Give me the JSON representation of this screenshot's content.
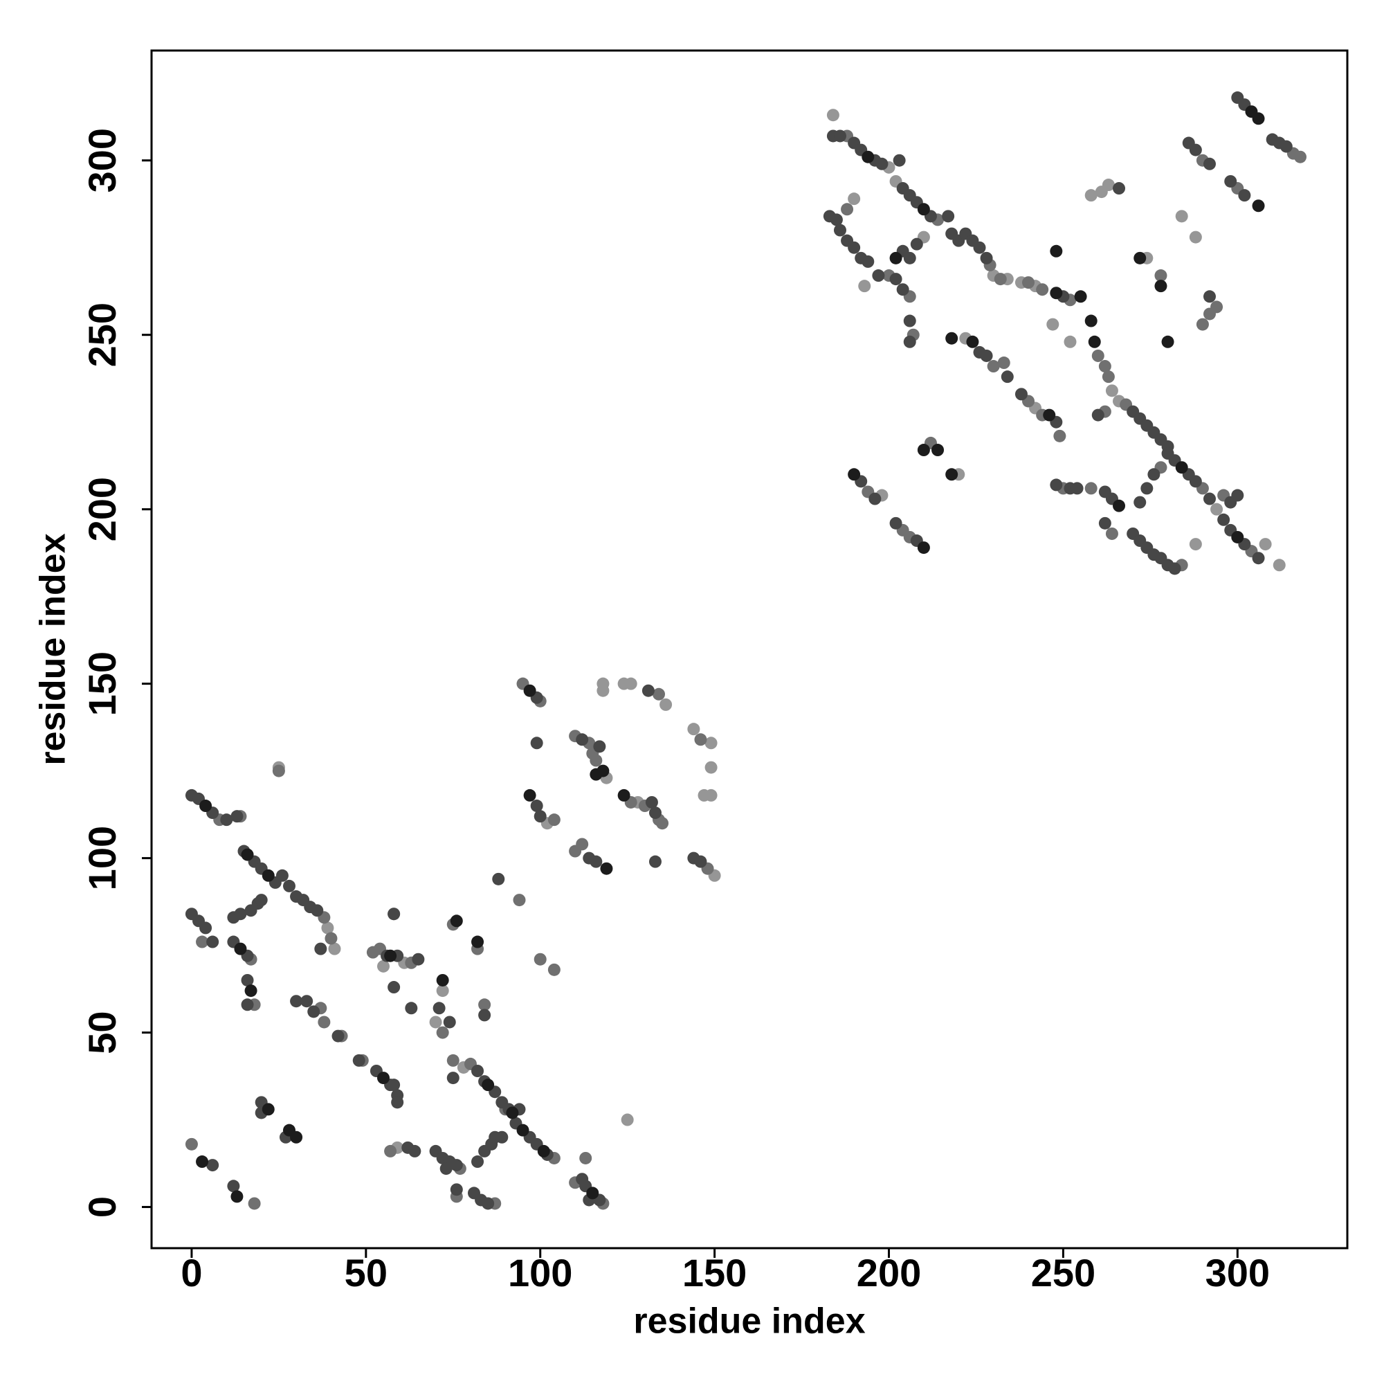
{
  "chart_data": {
    "type": "scatter",
    "xlabel": "residue index",
    "ylabel": "residue index",
    "xlim": [
      -11.5,
      331.5
    ],
    "ylim": [
      -11.8,
      331.5
    ],
    "xticks": [
      0,
      50,
      100,
      150,
      200,
      250,
      300
    ],
    "yticks": [
      0,
      50,
      100,
      150,
      200,
      250,
      300
    ],
    "grid": false,
    "series": [
      {
        "color": "#969696",
        "x": [
          39,
          41,
          61,
          55,
          25,
          59,
          70,
          72,
          78,
          102,
          119,
          118,
          118,
          124,
          126,
          136,
          144,
          149,
          149,
          149,
          147,
          128,
          150,
          125,
          184,
          200,
          202,
          230,
          234,
          238,
          242,
          190,
          193,
          210,
          222,
          242,
          247,
          252,
          258,
          261,
          263,
          274,
          284,
          288,
          264,
          266,
          294,
          308,
          312,
          220,
          198,
          288
        ],
        "y": [
          80,
          74,
          70,
          69,
          126,
          17,
          53,
          62,
          40,
          110,
          123,
          150,
          148,
          150,
          150,
          144,
          137,
          133,
          126,
          118,
          118,
          116,
          95,
          25,
          313,
          298,
          294,
          267,
          266,
          265,
          264,
          289,
          264,
          278,
          249,
          229,
          253,
          248,
          290,
          291,
          293,
          272,
          284,
          278,
          234,
          231,
          200,
          190,
          184,
          210,
          204,
          190
        ]
      },
      {
        "color": "#707070",
        "x": [
          8,
          14,
          38,
          40,
          3,
          17,
          18,
          25,
          37,
          38,
          43,
          49,
          52,
          54,
          63,
          58,
          57,
          77,
          76,
          87,
          72,
          84,
          82,
          75,
          94,
          75,
          80,
          90,
          104,
          0,
          18,
          110,
          113,
          118,
          95,
          100,
          110,
          114,
          115,
          116,
          134,
          146,
          110,
          112,
          104,
          126,
          130,
          134,
          135,
          148,
          100,
          104,
          188,
          214,
          229,
          232,
          240,
          244,
          252,
          188,
          200,
          206,
          207,
          230,
          233,
          240,
          244,
          249,
          278,
          260,
          262,
          263,
          268,
          290,
          304,
          262,
          212,
          194,
          204,
          206,
          250,
          258,
          264,
          284,
          278,
          296,
          316,
          318,
          290,
          300,
          294,
          292,
          290
        ],
        "y": [
          111,
          112,
          83,
          77,
          76,
          71,
          58,
          125,
          57,
          53,
          49,
          42,
          73,
          74,
          70,
          84,
          16,
          11,
          3,
          1,
          50,
          58,
          74,
          81,
          88,
          42,
          41,
          28,
          14,
          18,
          1,
          7,
          14,
          1,
          150,
          145,
          135,
          133,
          130,
          128,
          147,
          134,
          102,
          104,
          111,
          116,
          115,
          111,
          110,
          97,
          71,
          68,
          307,
          283,
          270,
          266,
          265,
          263,
          260,
          286,
          267,
          261,
          250,
          241,
          242,
          231,
          227,
          221,
          267,
          244,
          241,
          238,
          230,
          206,
          188,
          228,
          219,
          205,
          194,
          192,
          206,
          206,
          193,
          184,
          212,
          204,
          302,
          301,
          300,
          292,
          258,
          256,
          253
        ]
      },
      {
        "color": "#474747",
        "x": [
          0,
          2,
          6,
          10,
          13,
          15,
          18,
          20,
          24,
          26,
          28,
          30,
          32,
          34,
          36,
          37,
          0,
          2,
          4,
          6,
          12,
          14,
          17,
          19,
          20,
          12,
          16,
          16,
          16,
          30,
          33,
          35,
          42,
          48,
          53,
          57,
          58,
          59,
          59,
          56,
          59,
          65,
          58,
          63,
          58,
          62,
          64,
          70,
          72,
          74,
          76,
          73,
          76,
          81,
          83,
          85,
          71,
          74,
          84,
          88,
          75,
          82,
          84,
          87,
          89,
          93,
          97,
          99,
          102,
          91,
          94,
          82,
          84,
          86,
          87,
          89,
          6,
          12,
          20,
          20,
          27,
          112,
          113,
          117,
          114,
          99,
          99,
          112,
          117,
          131,
          99,
          100,
          114,
          116,
          133,
          132,
          133,
          144,
          146,
          184,
          186,
          190,
          192,
          196,
          198,
          203,
          204,
          206,
          208,
          212,
          217,
          218,
          220,
          222,
          224,
          226,
          228,
          250,
          183,
          185,
          186,
          188,
          190,
          192,
          194,
          197,
          202,
          204,
          206,
          206,
          204,
          206,
          208,
          226,
          228,
          234,
          238,
          248,
          266,
          270,
          272,
          274,
          276,
          278,
          280,
          282,
          286,
          288,
          292,
          296,
          298,
          302,
          306,
          260,
          192,
          196,
          202,
          208,
          248,
          252,
          254,
          262,
          264,
          262,
          270,
          272,
          274,
          276,
          278,
          280,
          282,
          272,
          274,
          276,
          280,
          298,
          300,
          300,
          302,
          310,
          312,
          314,
          286,
          288,
          292,
          298,
          302,
          292
        ],
        "y": [
          118,
          117,
          113,
          111,
          112,
          102,
          99,
          97,
          93,
          95,
          92,
          89,
          88,
          86,
          85,
          74,
          84,
          82,
          80,
          76,
          83,
          84,
          85,
          87,
          88,
          76,
          72,
          65,
          58,
          59,
          59,
          56,
          49,
          42,
          39,
          35,
          35,
          32,
          30,
          72,
          72,
          71,
          63,
          57,
          84,
          17,
          16,
          16,
          14,
          13,
          12,
          11,
          5,
          4,
          2,
          1,
          57,
          53,
          55,
          94,
          37,
          39,
          36,
          33,
          30,
          24,
          20,
          18,
          15,
          28,
          28,
          13,
          16,
          18,
          20,
          20,
          12,
          6,
          30,
          27,
          20,
          8,
          6,
          2,
          2,
          146,
          133,
          134,
          132,
          148,
          115,
          112,
          100,
          99,
          99,
          116,
          113,
          100,
          99,
          307,
          307,
          305,
          303,
          300,
          299,
          300,
          292,
          290,
          288,
          284,
          284,
          279,
          277,
          279,
          277,
          275,
          272,
          261,
          284,
          283,
          280,
          277,
          275,
          272,
          271,
          267,
          266,
          263,
          254,
          248,
          274,
          272,
          276,
          245,
          244,
          238,
          233,
          225,
          292,
          228,
          226,
          224,
          222,
          220,
          218,
          214,
          210,
          208,
          203,
          197,
          194,
          190,
          186,
          227,
          208,
          203,
          196,
          191,
          207,
          206,
          206,
          205,
          203,
          196,
          193,
          191,
          189,
          187,
          186,
          184,
          183,
          202,
          206,
          210,
          216,
          202,
          204,
          318,
          316,
          306,
          305,
          304,
          305,
          303,
          299,
          294,
          290,
          261
        ]
      },
      {
        "color": "#1c1c1c",
        "x": [
          4,
          16,
          22,
          14,
          17,
          55,
          57,
          72,
          76,
          82,
          85,
          92,
          95,
          101,
          3,
          13,
          22,
          28,
          30,
          115,
          97,
          116,
          118,
          97,
          119,
          124,
          194,
          210,
          248,
          255,
          202,
          218,
          224,
          246,
          248,
          272,
          278,
          280,
          258,
          259,
          284,
          300,
          266,
          210,
          214,
          218,
          190,
          210,
          304,
          306,
          306
        ],
        "y": [
          115,
          101,
          95,
          74,
          62,
          37,
          72,
          65,
          82,
          76,
          35,
          27,
          22,
          16,
          13,
          3,
          28,
          22,
          20,
          4,
          148,
          124,
          125,
          118,
          97,
          118,
          301,
          286,
          262,
          261,
          272,
          249,
          248,
          227,
          274,
          272,
          264,
          248,
          254,
          248,
          212,
          192,
          201,
          217,
          217,
          210,
          210,
          189,
          314,
          312,
          287
        ]
      }
    ]
  }
}
